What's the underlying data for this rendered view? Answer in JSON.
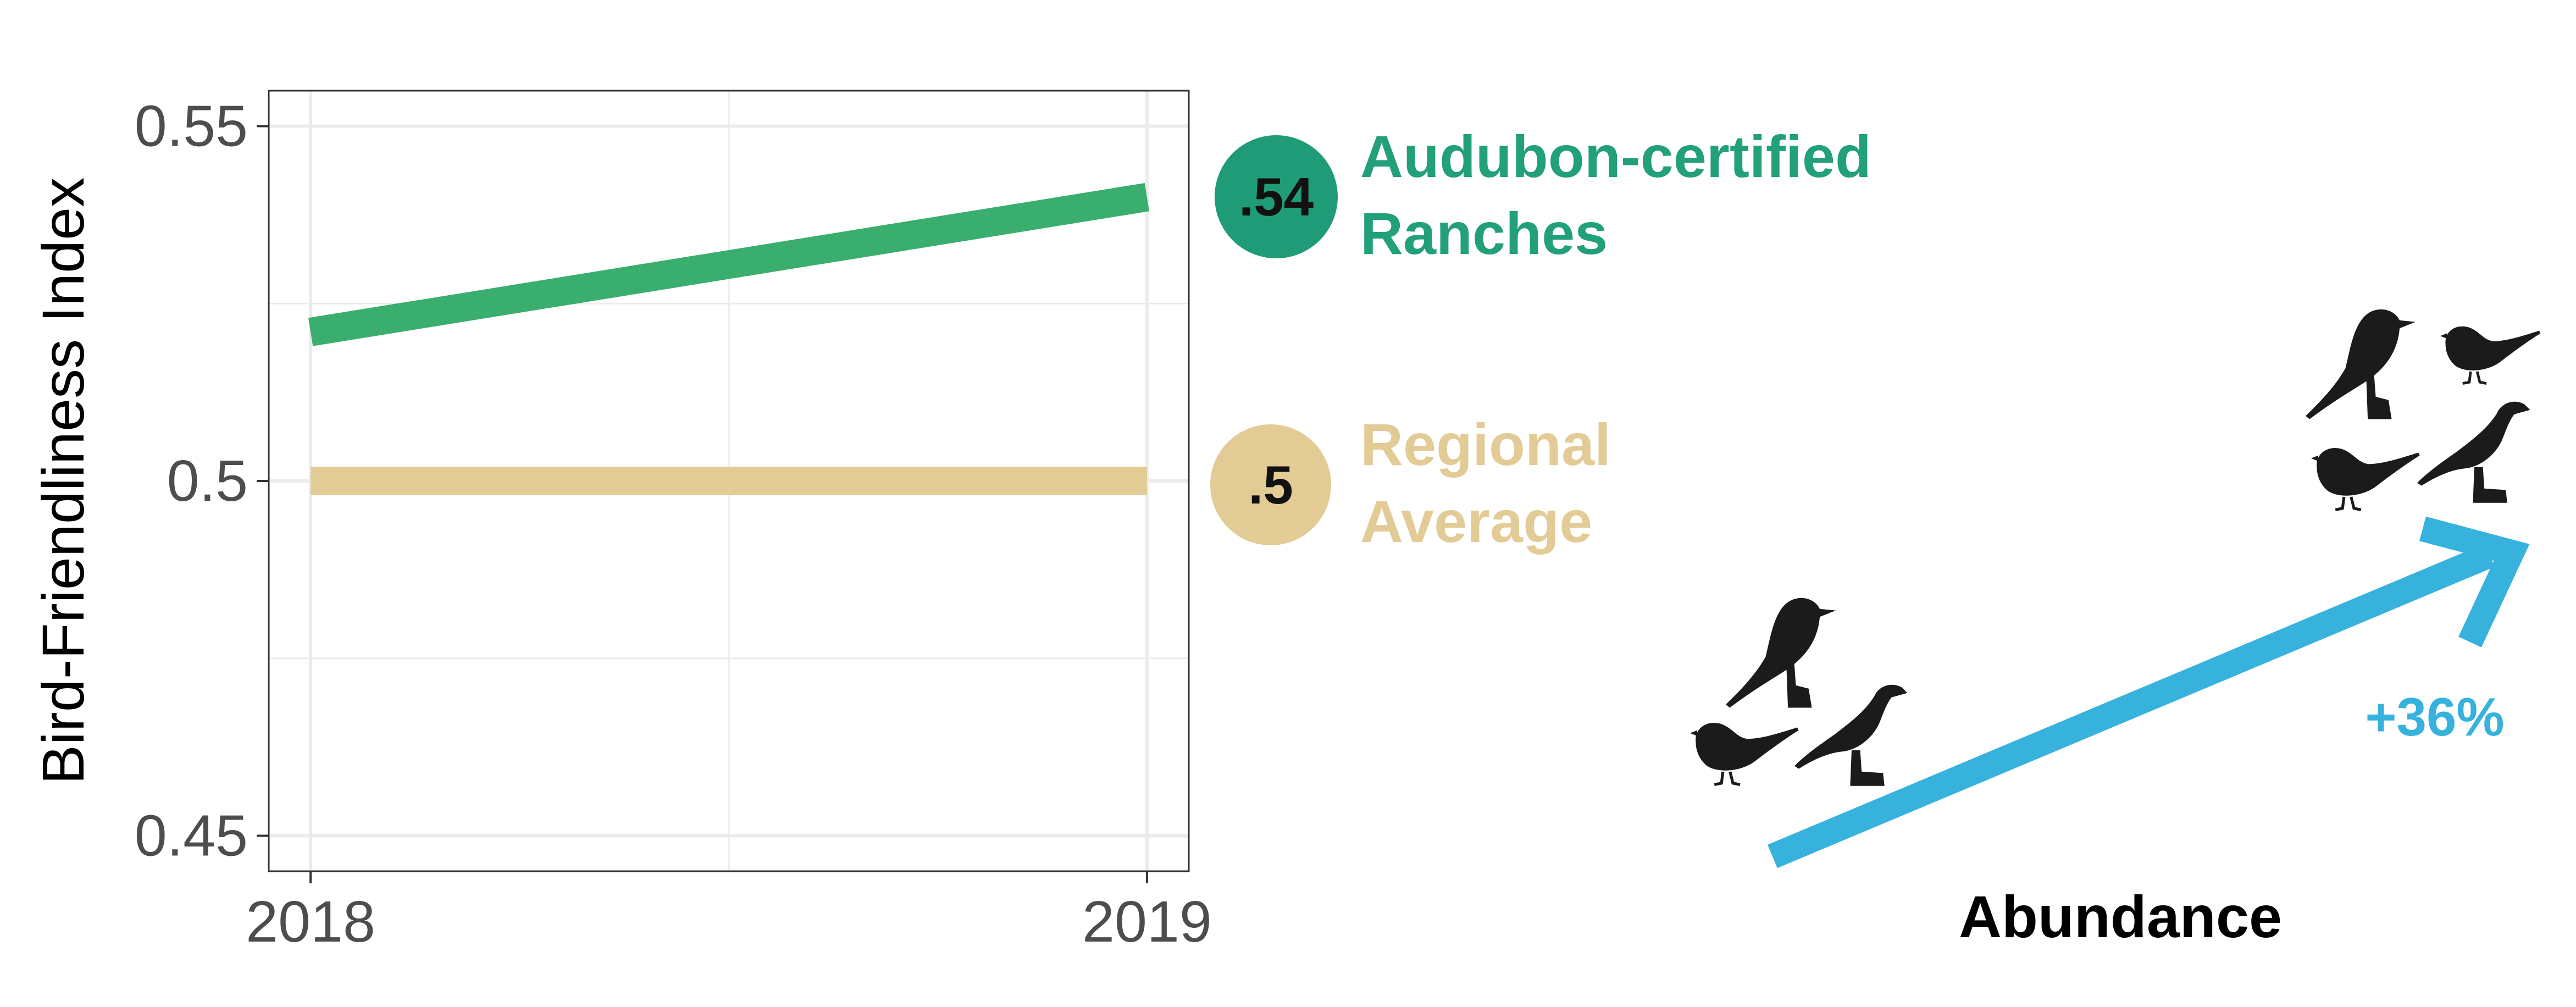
{
  "colors": {
    "certified": "#3aae6e",
    "certified_badge": "#1f9c77",
    "certified_text": "#22a07a",
    "regional": "#e3cb96",
    "regional_badge": "#e3cb96",
    "arrow": "#36b2dd",
    "bird": "#1b1b1b",
    "axis_text": "#4d4d4d",
    "grid": "#ebebeb"
  },
  "chart_data": {
    "type": "line",
    "x": [
      2018,
      2019
    ],
    "xticks": [
      "2018",
      "2019"
    ],
    "yticks": [
      "0.45",
      "0.5",
      "0.55"
    ],
    "ylabel": "Bird-Friendliness Index",
    "xlim": [
      2017.95,
      2019.05
    ],
    "ylim": [
      0.445,
      0.555
    ],
    "grid": true,
    "series": [
      {
        "key": "certified",
        "values": [
          0.521,
          0.54
        ]
      },
      {
        "key": "regional",
        "values": [
          0.5,
          0.5
        ]
      }
    ]
  },
  "legend": {
    "certified": {
      "badge": ".54",
      "line1": "Audubon-certified",
      "line2": "Ranches"
    },
    "regional": {
      "badge": ".5",
      "line1": "Regional",
      "line2": "Average"
    }
  },
  "abundance": {
    "label": "Abundance",
    "change": "+36%",
    "icons": [
      "bird-silhouette-icon"
    ]
  }
}
